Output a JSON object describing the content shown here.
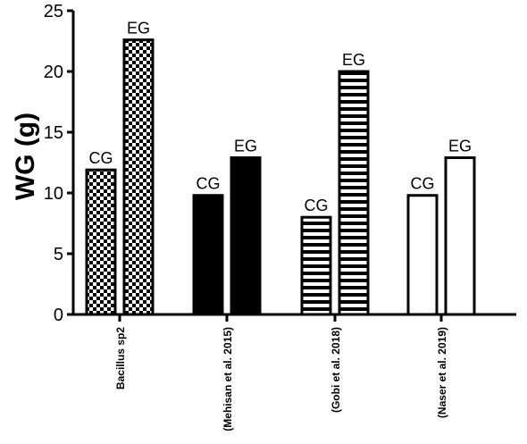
{
  "chart_data": {
    "type": "bar",
    "title": "",
    "xlabel": "",
    "ylabel": "WG (g)",
    "ylim": [
      0,
      25
    ],
    "yticks": [
      0,
      5,
      10,
      15,
      20,
      25
    ],
    "categories": [
      "Bacillus sp2",
      "(Mehisan et al. 2015)",
      "(Gobi et al. 2018)",
      "(Naser et al. 2019)"
    ],
    "series": [
      {
        "name": "CG",
        "values": [
          11.9,
          9.8,
          8.0,
          9.8
        ]
      },
      {
        "name": "EG",
        "values": [
          22.6,
          12.9,
          20.0,
          12.9
        ]
      }
    ],
    "bar_patterns": [
      "checkerboard",
      "solid-black",
      "horizontal-stripes",
      "white"
    ],
    "colors": {
      "ink": "#000000",
      "background": "#ffffff"
    },
    "grid": false,
    "legend": "none"
  }
}
